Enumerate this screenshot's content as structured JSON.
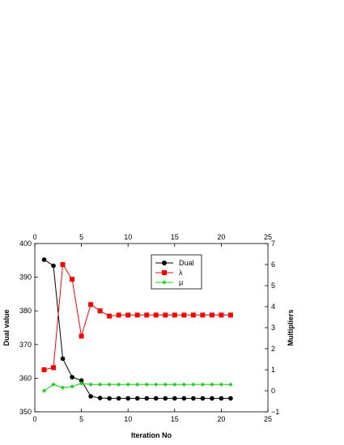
{
  "chart_data": {
    "type": "line",
    "xlabel": "Iteration No",
    "ylabel": "Dual value",
    "y2label": "Multipliers",
    "xlim": [
      0,
      25
    ],
    "ylim": [
      350,
      400
    ],
    "y2lim": [
      -1,
      7
    ],
    "xticks": [
      "0",
      "5",
      "10",
      "15",
      "20",
      "25"
    ],
    "yticks": [
      "350",
      "360",
      "370",
      "380",
      "390",
      "400"
    ],
    "y2ticks": [
      "-1",
      "0",
      "1",
      "2",
      "3",
      "4",
      "5",
      "6",
      "7"
    ],
    "x": [
      1,
      2,
      3,
      4,
      5,
      6,
      7,
      8,
      9,
      10,
      11,
      12,
      13,
      14,
      15,
      16,
      17,
      18,
      19,
      20,
      21
    ],
    "legend_position": "top-center",
    "series": [
      {
        "name": "Dual",
        "axis": "left",
        "color": "#000000",
        "marker": "circle",
        "values": [
          395.2,
          393.4,
          365.8,
          360.3,
          359.3,
          354.6,
          354.1,
          354.0,
          354.0,
          354.0,
          354.0,
          354.0,
          354.0,
          354.0,
          354.0,
          354.0,
          354.0,
          354.0,
          354.0,
          354.0,
          354.0
        ]
      },
      {
        "name": "λ",
        "axis": "right",
        "color": "#ff0000",
        "marker": "square",
        "values": [
          1.0,
          1.1,
          6.0,
          5.3,
          2.6,
          4.1,
          3.8,
          3.55,
          3.6,
          3.6,
          3.6,
          3.6,
          3.6,
          3.6,
          3.6,
          3.6,
          3.6,
          3.6,
          3.6,
          3.6,
          3.6
        ]
      },
      {
        "name": "μ",
        "axis": "right",
        "color": "#00dd00",
        "marker": "diamond",
        "values": [
          0.0,
          0.3,
          0.15,
          0.2,
          0.35,
          0.3,
          0.3,
          0.3,
          0.3,
          0.3,
          0.3,
          0.3,
          0.3,
          0.3,
          0.3,
          0.3,
          0.3,
          0.3,
          0.3,
          0.3,
          0.3
        ]
      }
    ]
  }
}
